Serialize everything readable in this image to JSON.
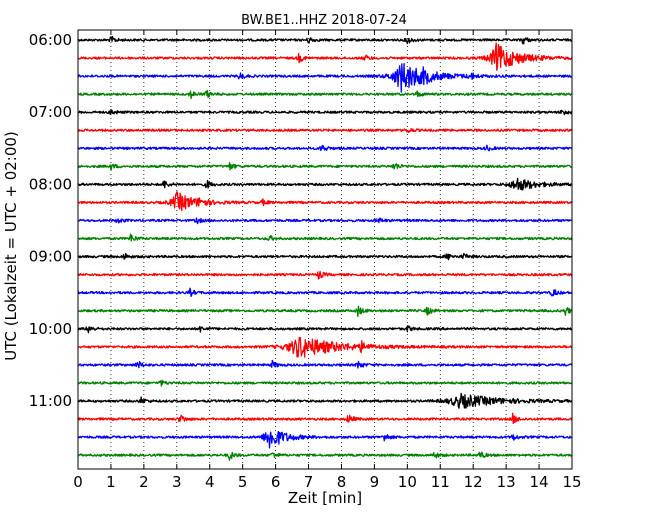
{
  "chart_data": {
    "type": "line",
    "title": "BW.BE1..HHZ 2018-07-24",
    "xlabel": "Zeit  [min]",
    "ylabel": "UTC (Lokalzeit = UTC + 02:00)",
    "xlim": [
      0,
      15
    ],
    "x_ticks": [
      "0",
      "1",
      "2",
      "3",
      "4",
      "5",
      "6",
      "7",
      "8",
      "9",
      "10",
      "11",
      "12",
      "13",
      "14",
      "15"
    ],
    "y_tick_labels": [
      "06:00",
      "07:00",
      "08:00",
      "09:00",
      "10:00",
      "11:00"
    ],
    "grid": "vertical-dotted",
    "trace_colors": [
      "#000000",
      "#ff0000",
      "#0000ff",
      "#008000"
    ],
    "traces": [
      {
        "start": "06:00",
        "events": [
          {
            "t": 1.0,
            "a": 0.25
          },
          {
            "t": 7.0,
            "a": 0.25
          },
          {
            "t": 10.0,
            "a": 0.25
          },
          {
            "t": 13.5,
            "a": 0.3
          }
        ]
      },
      {
        "start": "06:15",
        "events": [
          {
            "t": 6.7,
            "a": 0.3
          },
          {
            "t": 8.7,
            "a": 0.2
          },
          {
            "t": 12.7,
            "a": 1.0,
            "d": 0.6
          }
        ]
      },
      {
        "start": "06:30",
        "events": [
          {
            "t": 4.9,
            "a": 0.25
          },
          {
            "t": 9.8,
            "a": 1.1,
            "d": 0.7
          },
          {
            "t": 10.5,
            "a": 0.3
          },
          {
            "t": 11.9,
            "a": 0.25
          }
        ]
      },
      {
        "start": "06:45",
        "events": [
          {
            "t": 3.4,
            "a": 0.3
          },
          {
            "t": 3.9,
            "a": 0.25
          },
          {
            "t": 10.3,
            "a": 0.2
          }
        ]
      },
      {
        "start": "07:00",
        "events": [
          {
            "t": 1.0,
            "a": 0.2
          },
          {
            "t": 14.7,
            "a": 0.25
          }
        ]
      },
      {
        "start": "07:15",
        "events": [
          {
            "t": 10.0,
            "a": 0.2
          }
        ]
      },
      {
        "start": "07:30",
        "events": [
          {
            "t": 7.4,
            "a": 0.3
          },
          {
            "t": 12.4,
            "a": 0.2
          }
        ]
      },
      {
        "start": "07:45",
        "events": [
          {
            "t": 1.0,
            "a": 0.2
          },
          {
            "t": 4.6,
            "a": 0.25
          },
          {
            "t": 9.6,
            "a": 0.3
          }
        ]
      },
      {
        "start": "08:00",
        "events": [
          {
            "t": 2.6,
            "a": 0.3
          },
          {
            "t": 3.9,
            "a": 0.3
          },
          {
            "t": 13.3,
            "a": 0.5,
            "d": 0.5
          }
        ]
      },
      {
        "start": "08:15",
        "events": [
          {
            "t": 3.0,
            "a": 0.7,
            "d": 0.5
          },
          {
            "t": 3.7,
            "a": 0.3
          },
          {
            "t": 5.6,
            "a": 0.2
          }
        ]
      },
      {
        "start": "08:30",
        "events": [
          {
            "t": 1.2,
            "a": 0.2
          },
          {
            "t": 3.6,
            "a": 0.2
          },
          {
            "t": 9.1,
            "a": 0.2
          }
        ]
      },
      {
        "start": "08:45",
        "events": [
          {
            "t": 1.6,
            "a": 0.3
          },
          {
            "t": 5.8,
            "a": 0.2
          }
        ]
      },
      {
        "start": "09:00",
        "events": [
          {
            "t": 1.4,
            "a": 0.25
          },
          {
            "t": 11.2,
            "a": 0.25
          },
          {
            "t": 11.7,
            "a": 0.2
          }
        ]
      },
      {
        "start": "09:15",
        "events": [
          {
            "t": 7.3,
            "a": 0.3
          }
        ]
      },
      {
        "start": "09:30",
        "events": [
          {
            "t": 3.4,
            "a": 0.25
          },
          {
            "t": 14.4,
            "a": 0.3
          }
        ]
      },
      {
        "start": "09:45",
        "events": [
          {
            "t": 8.5,
            "a": 0.35
          },
          {
            "t": 10.6,
            "a": 0.3
          },
          {
            "t": 14.8,
            "a": 0.3
          }
        ]
      },
      {
        "start": "10:00",
        "events": [
          {
            "t": 0.3,
            "a": 0.3
          },
          {
            "t": 3.7,
            "a": 0.2
          },
          {
            "t": 10.0,
            "a": 0.2
          }
        ]
      },
      {
        "start": "10:15",
        "events": [
          {
            "t": 6.7,
            "a": 0.8,
            "d": 1.0
          },
          {
            "t": 8.6,
            "a": 0.3
          }
        ]
      },
      {
        "start": "10:30",
        "events": [
          {
            "t": 1.8,
            "a": 0.3
          },
          {
            "t": 5.9,
            "a": 0.25
          },
          {
            "t": 8.5,
            "a": 0.3
          }
        ]
      },
      {
        "start": "10:45",
        "events": [
          {
            "t": 2.5,
            "a": 0.2
          }
        ]
      },
      {
        "start": "11:00",
        "events": [
          {
            "t": 1.9,
            "a": 0.25
          },
          {
            "t": 11.6,
            "a": 0.5,
            "d": 1.0
          }
        ]
      },
      {
        "start": "11:15",
        "events": [
          {
            "t": 3.1,
            "a": 0.35
          },
          {
            "t": 8.2,
            "a": 0.35
          },
          {
            "t": 13.2,
            "a": 0.35
          }
        ]
      },
      {
        "start": "11:30",
        "events": [
          {
            "t": 5.8,
            "a": 0.9,
            "d": 0.4
          },
          {
            "t": 9.3,
            "a": 0.3
          },
          {
            "t": 13.2,
            "a": 0.25
          }
        ]
      },
      {
        "start": "11:45",
        "events": [
          {
            "t": 4.6,
            "a": 0.3
          },
          {
            "t": 5.9,
            "a": 0.25
          },
          {
            "t": 10.8,
            "a": 0.25
          },
          {
            "t": 12.2,
            "a": 0.3
          }
        ]
      }
    ]
  }
}
